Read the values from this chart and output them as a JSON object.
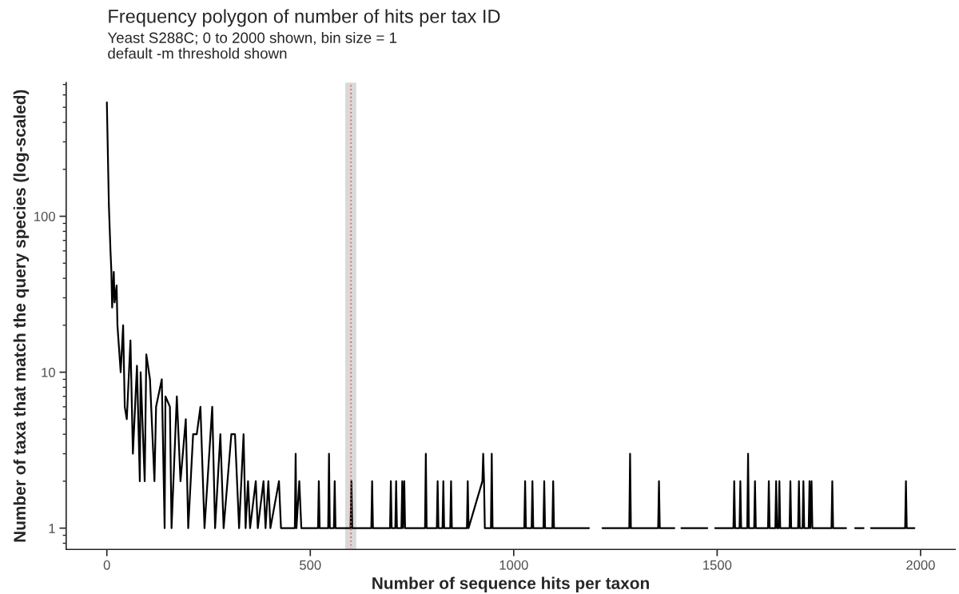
{
  "chart_data": {
    "type": "line",
    "title": "Frequency polygon of number of hits per tax ID",
    "subtitle": "Yeast S288C; 0 to 2000 shown, bin size = 1\ndefault -m threshold shown",
    "xlabel": "Number of sequence hits per taxon",
    "ylabel": "Number of taxa that match the query species (log-scaled)",
    "x": [
      0,
      5,
      9,
      11,
      13,
      17,
      19,
      24,
      26,
      34,
      40,
      44,
      49,
      58,
      64,
      74,
      81,
      83,
      93,
      97,
      106,
      117,
      121,
      135,
      142,
      144,
      155,
      159,
      172,
      181,
      194,
      200,
      212,
      221,
      230,
      240,
      259,
      266,
      279,
      287,
      306,
      315,
      325,
      336,
      341,
      347,
      352,
      366,
      371,
      385,
      390,
      397,
      402,
      423,
      428,
      462,
      464,
      466,
      473,
      478,
      519,
      521,
      523,
      544,
      546,
      548,
      558,
      560,
      562,
      599,
      601,
      603,
      650,
      652,
      654,
      696,
      698,
      700,
      709,
      711,
      713,
      724,
      726,
      728,
      731,
      733,
      782,
      784,
      786,
      811,
      813,
      815,
      825,
      827,
      829,
      844,
      846,
      848,
      885,
      887,
      889,
      923,
      925,
      927,
      929,
      944,
      946,
      948,
      1026,
      1028,
      1030,
      1044,
      1046,
      1048,
      1073,
      1075,
      1077,
      1095,
      1097,
      1099,
      1185,
      1200,
      1218,
      1244,
      1284,
      1286,
      1288,
      1355,
      1357,
      1359,
      1395,
      1403,
      1412,
      1476,
      1486,
      1495,
      1540,
      1542,
      1544,
      1555,
      1557,
      1559,
      1574,
      1576,
      1578,
      1591,
      1593,
      1595,
      1625,
      1627,
      1629,
      1643,
      1645,
      1647,
      1651,
      1653,
      1655,
      1678,
      1680,
      1682,
      1699,
      1701,
      1703,
      1710,
      1712,
      1714,
      1725,
      1727,
      1729,
      1732,
      1734,
      1781,
      1783,
      1785,
      1817,
      1828,
      1839,
      1860,
      1869,
      1878,
      1962,
      1964,
      1966,
      1985
    ],
    "series": [
      {
        "color": "#000000",
        "values": [
          537,
          117,
          59,
          45,
          26,
          44,
          28,
          36,
          20,
          10,
          20,
          6,
          5,
          16,
          3,
          11,
          2,
          10,
          2,
          13,
          9,
          2,
          6,
          9,
          1,
          7,
          6,
          1,
          7,
          2,
          5,
          1,
          4,
          4,
          6,
          1,
          6,
          1,
          4,
          1,
          4,
          4,
          1,
          4,
          1,
          2,
          1,
          2,
          1,
          2,
          1,
          2,
          1,
          2,
          1,
          1,
          3,
          1,
          2,
          1,
          1,
          2,
          1,
          1,
          3,
          1,
          1,
          2,
          1,
          1,
          2,
          1,
          1,
          2,
          1,
          1,
          2,
          1,
          1,
          2,
          1,
          1,
          2,
          1,
          2,
          1,
          1,
          3,
          1,
          1,
          2,
          1,
          1,
          2,
          1,
          1,
          2,
          1,
          1,
          2,
          1,
          2,
          3,
          2,
          1,
          1,
          3,
          1,
          1,
          2,
          1,
          1,
          2,
          1,
          1,
          2,
          1,
          1,
          2,
          1,
          1,
          null,
          1,
          1,
          1,
          3,
          1,
          1,
          2,
          1,
          1,
          null,
          1,
          1,
          null,
          1,
          1,
          2,
          1,
          1,
          2,
          1,
          1,
          3,
          1,
          1,
          2,
          1,
          1,
          2,
          1,
          1,
          2,
          1,
          1,
          2,
          1,
          1,
          2,
          1,
          1,
          2,
          1,
          1,
          2,
          1,
          1,
          2,
          1,
          2,
          1,
          1,
          2,
          1,
          1,
          null,
          1,
          1,
          null,
          1,
          1,
          2,
          1,
          1
        ]
      }
    ],
    "log": "y",
    "xlim": [
      -100,
      2085
    ],
    "xticks": [
      0,
      500,
      1000,
      1500,
      2000
    ],
    "ylim": [
      0.73,
      720
    ],
    "yticks": [
      1,
      10,
      100
    ],
    "grid": false,
    "legend": false,
    "marker": "none",
    "line_style": "solid",
    "ref_lines": [
      {
        "axis": "x",
        "value": 600,
        "color": "#e06666",
        "line_style": "dotted"
      }
    ],
    "bands": [
      {
        "axis": "x",
        "from": 586,
        "to": 613,
        "color": "#d9d9d9"
      }
    ]
  }
}
